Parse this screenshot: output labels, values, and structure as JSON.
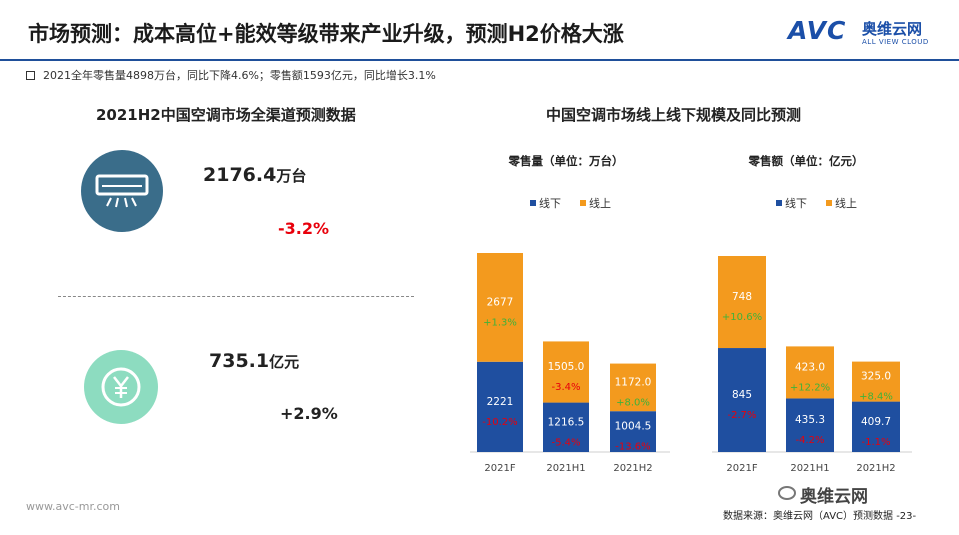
{
  "header": {
    "title": "市场预测：成本高位+能效等级带来产业升级，预测H2价格大涨",
    "logo_mark": "AVC",
    "logo_cn": "奥维云网",
    "logo_en": "ALL VIEW CLOUD"
  },
  "summary": "2021全年零售量4898万台，同比下降4.6%；零售额1593亿元，同比增长3.1%",
  "left_panel": {
    "title": "2021H2中国空调市场全渠道预测数据",
    "volume": {
      "value": "2176.4",
      "unit": "万台",
      "change": "-3.2%"
    },
    "revenue": {
      "value": "735.1",
      "unit": "亿元",
      "change": "+2.9%"
    }
  },
  "right_panel": {
    "title": "中国空调市场线上线下规模及同比预测"
  },
  "footer": {
    "website": "www.avc-mr.com",
    "source": "数据来源：奥维云网（AVC）预测数据 -23-",
    "wechat": "奥维云网"
  },
  "colors": {
    "offline": "#1f4fa0",
    "online": "#f39a1e",
    "positive": "#3fb23a",
    "negative": "#e8000b"
  },
  "chart_data": [
    {
      "type": "bar",
      "stacked": true,
      "title": "零售量（单位：万台）",
      "categories": [
        "2021F",
        "2021H1",
        "2021H2"
      ],
      "legend_position": "top-left",
      "series": [
        {
          "name": "线下",
          "values": [
            2221,
            1216.5,
            1004.5
          ],
          "labels": [
            "2221",
            "1216.5",
            "1004.5"
          ],
          "yoy": [
            "-10.2%",
            "-5.4%",
            "-13.6%"
          ]
        },
        {
          "name": "线上",
          "values": [
            2677,
            1505.0,
            1172.0
          ],
          "labels": [
            "2677",
            "1505.0",
            "1172.0"
          ],
          "yoy": [
            "+1.3%",
            "-3.4%",
            "+8.0%"
          ]
        }
      ],
      "ylim": [
        0,
        5000
      ]
    },
    {
      "type": "bar",
      "stacked": true,
      "title": "零售额（单位：亿元）",
      "categories": [
        "2021F",
        "2021H1",
        "2021H2"
      ],
      "legend_position": "top-left",
      "series": [
        {
          "name": "线下",
          "values": [
            845,
            435.3,
            409.7
          ],
          "labels": [
            "845",
            "435.3",
            "409.7"
          ],
          "yoy": [
            "-2.7%",
            "-4.2%",
            "-1.1%"
          ]
        },
        {
          "name": "线上",
          "values": [
            748,
            423.0,
            325.0
          ],
          "labels": [
            "748",
            "423.0",
            "325.0"
          ],
          "yoy": [
            "+10.6%",
            "+12.2%",
            "+8.4%"
          ]
        }
      ],
      "ylim": [
        0,
        1620
      ]
    }
  ]
}
